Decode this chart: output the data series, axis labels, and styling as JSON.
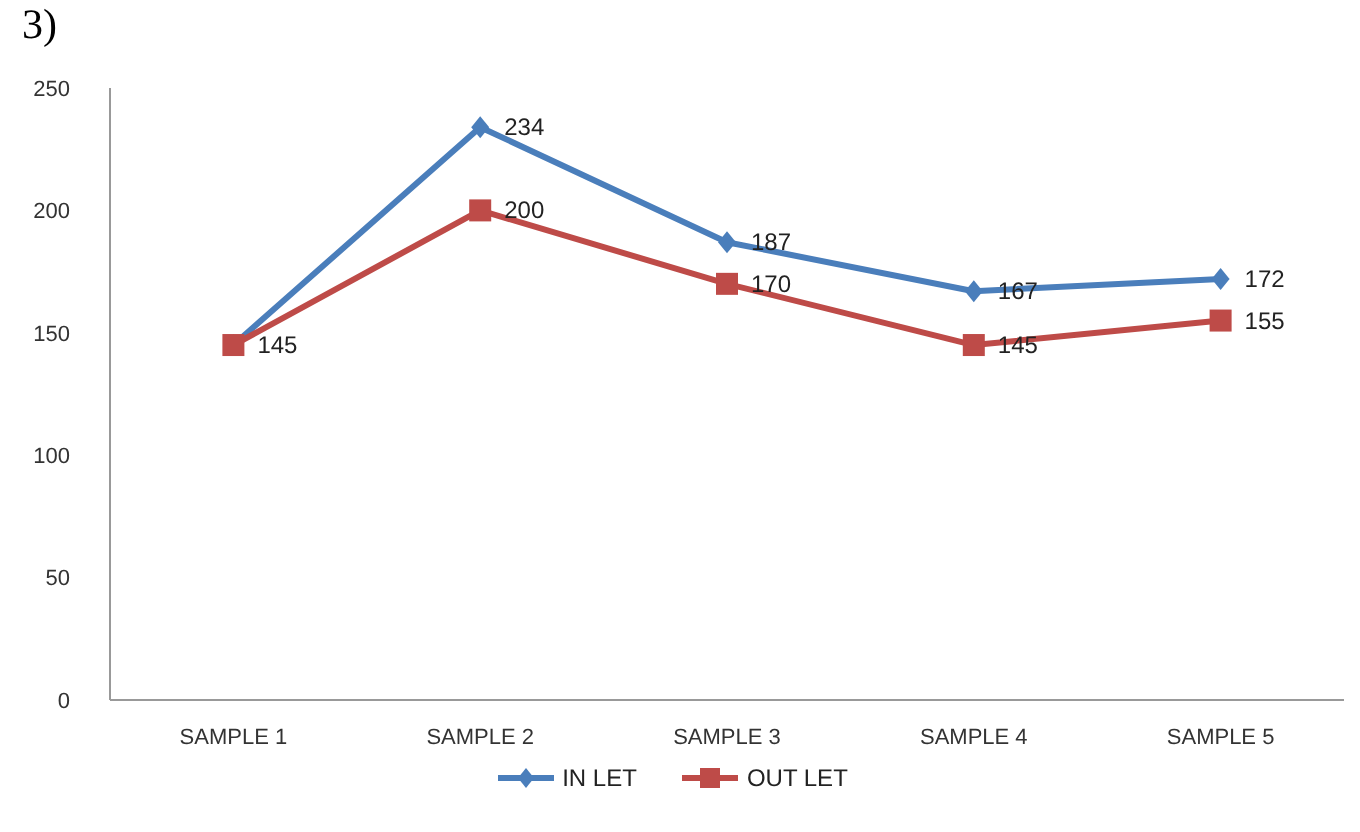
{
  "chart_data": {
    "type": "line",
    "title": "3)",
    "categories": [
      "SAMPLE 1",
      "SAMPLE 2",
      "SAMPLE 3",
      "SAMPLE 4",
      "SAMPLE 5"
    ],
    "series": [
      {
        "name": "IN LET",
        "color": "#4a7ebb",
        "marker": "diamond",
        "values": [
          145,
          234,
          187,
          167,
          172
        ],
        "value_labels": [
          null,
          "234",
          "187",
          "167",
          "172"
        ]
      },
      {
        "name": "OUT LET",
        "color": "#be4b48",
        "marker": "square",
        "values": [
          145,
          200,
          170,
          145,
          155
        ],
        "value_labels": [
          "145",
          "200",
          "170",
          "145",
          "155"
        ]
      }
    ],
    "ylim": [
      0,
      250
    ],
    "yticks": [
      0,
      50,
      100,
      150,
      200,
      250
    ],
    "legend": "bottom"
  }
}
